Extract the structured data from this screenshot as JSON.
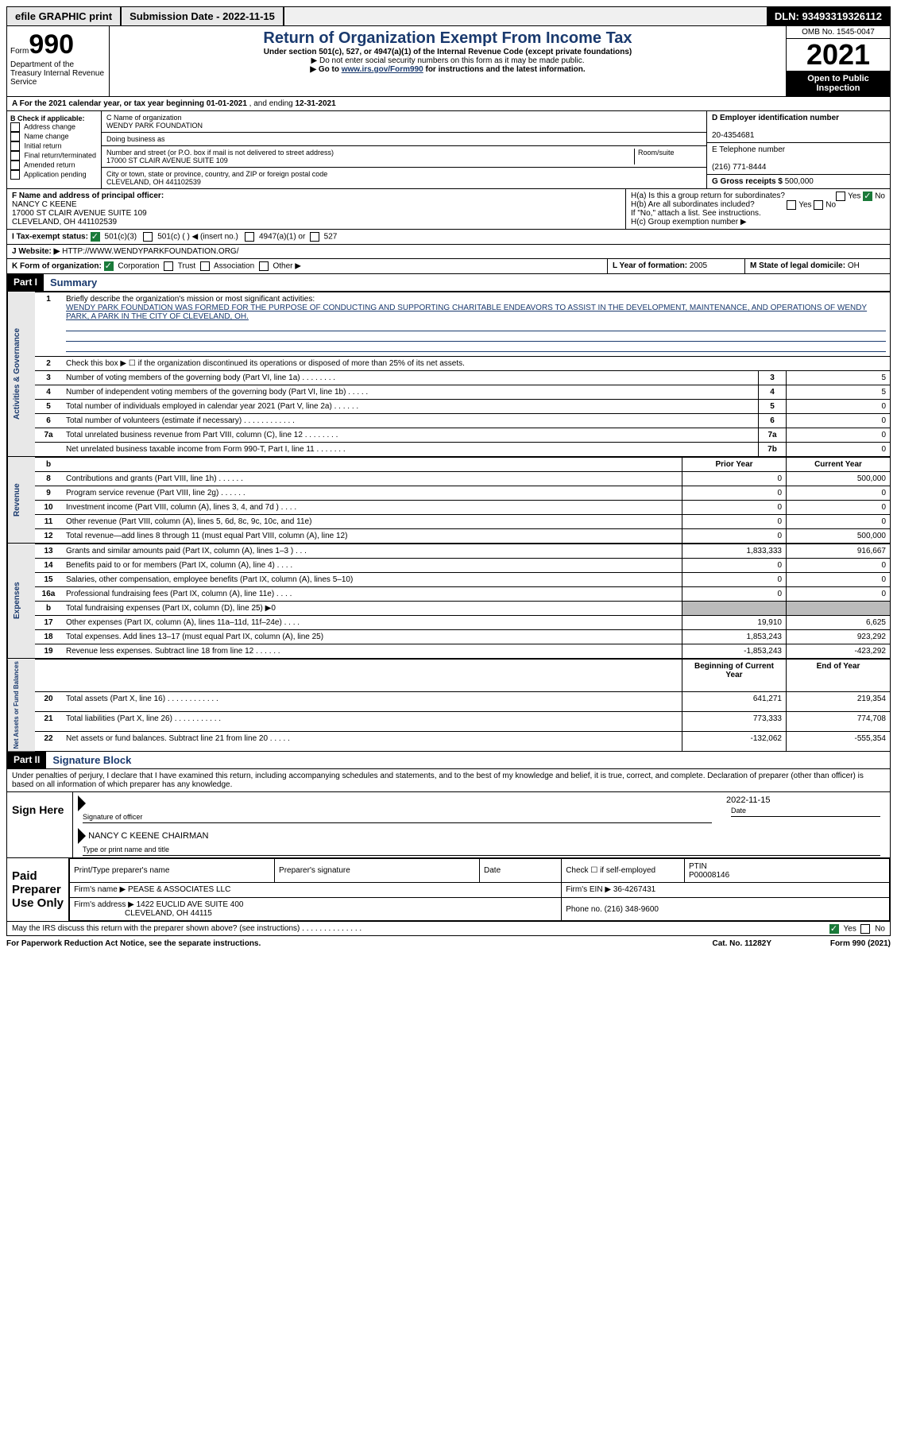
{
  "topbar": {
    "efile": "efile GRAPHIC print",
    "submission_label": "Submission Date - ",
    "submission_date": "2022-11-15",
    "dln_label": "DLN: ",
    "dln": "93493319326112"
  },
  "header": {
    "form_word": "Form",
    "form_number": "990",
    "dept": "Department of the Treasury Internal Revenue Service",
    "title": "Return of Organization Exempt From Income Tax",
    "subtitle": "Under section 501(c), 527, or 4947(a)(1) of the Internal Revenue Code (except private foundations)",
    "note1": "▶ Do not enter social security numbers on this form as it may be made public.",
    "note2_pre": "▶ Go to ",
    "note2_link": "www.irs.gov/Form990",
    "note2_post": " for instructions and the latest information.",
    "omb": "OMB No. 1545-0047",
    "year": "2021",
    "open": "Open to Public Inspection"
  },
  "period": {
    "label_a": "A For the 2021 calendar year, or tax year beginning ",
    "begin": "01-01-2021",
    "mid": " , and ending ",
    "end": "12-31-2021"
  },
  "colB": {
    "header": "B Check if applicable:",
    "items": [
      "Address change",
      "Name change",
      "Initial return",
      "Final return/terminated",
      "Amended return",
      "Application pending"
    ]
  },
  "colC": {
    "name_label": "C Name of organization",
    "name": "WENDY PARK FOUNDATION",
    "dba_label": "Doing business as",
    "street_label": "Number and street (or P.O. box if mail is not delivered to street address)",
    "room_label": "Room/suite",
    "street": "17000 ST CLAIR AVENUE SUITE 109",
    "city_label": "City or town, state or province, country, and ZIP or foreign postal code",
    "city": "CLEVELAND, OH  441102539"
  },
  "colD": {
    "ein_label": "D Employer identification number",
    "ein": "20-4354681",
    "phone_label": "E Telephone number",
    "phone": "(216) 771-8444",
    "gross_label": "G Gross receipts $ ",
    "gross": "500,000"
  },
  "rowF": {
    "label": "F Name and address of principal officer:",
    "name": "NANCY C KEENE",
    "addr1": "17000 ST CLAIR AVENUE SUITE 109",
    "addr2": "CLEVELAND, OH  441102539"
  },
  "rowH": {
    "ha": "H(a)  Is this a group return for subordinates?",
    "hb": "H(b)  Are all subordinates included?",
    "hb_note": "If \"No,\" attach a list. See instructions.",
    "hc": "H(c)  Group exemption number ▶",
    "yes": "Yes",
    "no": "No"
  },
  "rowI": {
    "label": "I  Tax-exempt status:",
    "o1": "501(c)(3)",
    "o2": "501(c) (  ) ◀ (insert no.)",
    "o3": "4947(a)(1) or",
    "o4": "527"
  },
  "rowJ": {
    "label": "J  Website: ▶",
    "value": "HTTP://WWW.WENDYPARKFOUNDATION.ORG/"
  },
  "rowK": {
    "label": "K Form of organization:",
    "o1": "Corporation",
    "o2": "Trust",
    "o3": "Association",
    "o4": "Other ▶"
  },
  "rowL": {
    "label": "L Year of formation: ",
    "value": "2005"
  },
  "rowM": {
    "label": "M State of legal domicile: ",
    "value": "OH"
  },
  "part1": {
    "tag": "Part I",
    "title": "Summary",
    "q1_label": "Briefly describe the organization's mission or most significant activities:",
    "q1_text": "WENDY PARK FOUNDATION WAS FORMED FOR THE PURPOSE OF CONDUCTING AND SUPPORTING CHARITABLE ENDEAVORS TO ASSIST IN THE DEVELOPMENT, MAINTENANCE, AND OPERATIONS OF WENDY PARK, A PARK IN THE CITY OF CLEVELAND, OH.",
    "q2": "Check this box ▶ ☐ if the organization discontinued its operations or disposed of more than 25% of its net assets.",
    "lines_gov": [
      {
        "n": "3",
        "t": "Number of voting members of the governing body (Part VI, line 1a)  .  .  .  .  .  .  .  .",
        "box": "3",
        "v": "5"
      },
      {
        "n": "4",
        "t": "Number of independent voting members of the governing body (Part VI, line 1b)  .  .  .  .  .",
        "box": "4",
        "v": "5"
      },
      {
        "n": "5",
        "t": "Total number of individuals employed in calendar year 2021 (Part V, line 2a)  .  .  .  .  .  .",
        "box": "5",
        "v": "0"
      },
      {
        "n": "6",
        "t": "Total number of volunteers (estimate if necessary)  .  .  .  .  .  .  .  .  .  .  .  .",
        "box": "6",
        "v": "0"
      },
      {
        "n": "7a",
        "t": "Total unrelated business revenue from Part VIII, column (C), line 12  .  .  .  .  .  .  .  .",
        "box": "7a",
        "v": "0"
      },
      {
        "n": "",
        "t": "Net unrelated business taxable income from Form 990-T, Part I, line 11  .  .  .  .  .  .  .",
        "box": "7b",
        "v": "0"
      }
    ],
    "col_prior": "Prior Year",
    "col_current": "Current Year",
    "lines_rev": [
      {
        "n": "8",
        "t": "Contributions and grants (Part VIII, line 1h)  .  .  .  .  .  .",
        "p": "0",
        "c": "500,000"
      },
      {
        "n": "9",
        "t": "Program service revenue (Part VIII, line 2g)  .  .  .  .  .  .",
        "p": "0",
        "c": "0"
      },
      {
        "n": "10",
        "t": "Investment income (Part VIII, column (A), lines 3, 4, and 7d )  .  .  .  .",
        "p": "0",
        "c": "0"
      },
      {
        "n": "11",
        "t": "Other revenue (Part VIII, column (A), lines 5, 6d, 8c, 9c, 10c, and 11e)",
        "p": "0",
        "c": "0"
      },
      {
        "n": "12",
        "t": "Total revenue—add lines 8 through 11 (must equal Part VIII, column (A), line 12)",
        "p": "0",
        "c": "500,000"
      }
    ],
    "lines_exp": [
      {
        "n": "13",
        "t": "Grants and similar amounts paid (Part IX, column (A), lines 1–3 )  .  .  .",
        "p": "1,833,333",
        "c": "916,667"
      },
      {
        "n": "14",
        "t": "Benefits paid to or for members (Part IX, column (A), line 4)  .  .  .  .",
        "p": "0",
        "c": "0"
      },
      {
        "n": "15",
        "t": "Salaries, other compensation, employee benefits (Part IX, column (A), lines 5–10)",
        "p": "0",
        "c": "0"
      },
      {
        "n": "16a",
        "t": "Professional fundraising fees (Part IX, column (A), line 11e)  .  .  .  .",
        "p": "0",
        "c": "0"
      },
      {
        "n": "b",
        "t": "Total fundraising expenses (Part IX, column (D), line 25) ▶0",
        "p": "",
        "c": "",
        "grey": true
      },
      {
        "n": "17",
        "t": "Other expenses (Part IX, column (A), lines 11a–11d, 11f–24e)  .  .  .  .",
        "p": "19,910",
        "c": "6,625"
      },
      {
        "n": "18",
        "t": "Total expenses. Add lines 13–17 (must equal Part IX, column (A), line 25)",
        "p": "1,853,243",
        "c": "923,292"
      },
      {
        "n": "19",
        "t": "Revenue less expenses. Subtract line 18 from line 12  .  .  .  .  .  .",
        "p": "-1,853,243",
        "c": "-423,292"
      }
    ],
    "col_begin": "Beginning of Current Year",
    "col_end": "End of Year",
    "lines_net": [
      {
        "n": "20",
        "t": "Total assets (Part X, line 16)  .  .  .  .  .  .  .  .  .  .  .  .",
        "p": "641,271",
        "c": "219,354"
      },
      {
        "n": "21",
        "t": "Total liabilities (Part X, line 26)  .  .  .  .  .  .  .  .  .  .  .",
        "p": "773,333",
        "c": "774,708"
      },
      {
        "n": "22",
        "t": "Net assets or fund balances. Subtract line 21 from line 20  .  .  .  .  .",
        "p": "-132,062",
        "c": "-555,354"
      }
    ],
    "vlabels": {
      "gov": "Activities & Governance",
      "rev": "Revenue",
      "exp": "Expenses",
      "net": "Net Assets or Fund Balances"
    }
  },
  "part2": {
    "tag": "Part II",
    "title": "Signature Block",
    "decl": "Under penalties of perjury, I declare that I have examined this return, including accompanying schedules and statements, and to the best of my knowledge and belief, it is true, correct, and complete. Declaration of preparer (other than officer) is based on all information of which preparer has any knowledge.",
    "sign_here": "Sign Here",
    "sig_officer": "Signature of officer",
    "sig_date": "2022-11-15",
    "date_label": "Date",
    "officer_name": "NANCY C KEENE  CHAIRMAN",
    "type_name": "Type or print name and title",
    "paid": "Paid Preparer Use Only",
    "prep_name_label": "Print/Type preparer's name",
    "prep_sig_label": "Preparer's signature",
    "prep_date_label": "Date",
    "check_if": "Check ☐ if self-employed",
    "ptin_label": "PTIN",
    "ptin": "P00008146",
    "firm_name_label": "Firm's name    ▶ ",
    "firm_name": "PEASE & ASSOCIATES LLC",
    "firm_ein_label": "Firm's EIN ▶ ",
    "firm_ein": "36-4267431",
    "firm_addr_label": "Firm's address ▶ ",
    "firm_addr": "1422 EUCLID AVE SUITE 400",
    "firm_addr2": "CLEVELAND, OH  44115",
    "firm_phone_label": "Phone no. ",
    "firm_phone": "(216) 348-9600",
    "discuss": "May the IRS discuss this return with the preparer shown above? (see instructions)  .  .  .  .  .  .  .  .  .  .  .  .  .  .",
    "yes": "Yes",
    "no": "No"
  },
  "footer": {
    "left": "For Paperwork Reduction Act Notice, see the separate instructions.",
    "mid": "Cat. No. 11282Y",
    "right": "Form 990 (2021)"
  }
}
